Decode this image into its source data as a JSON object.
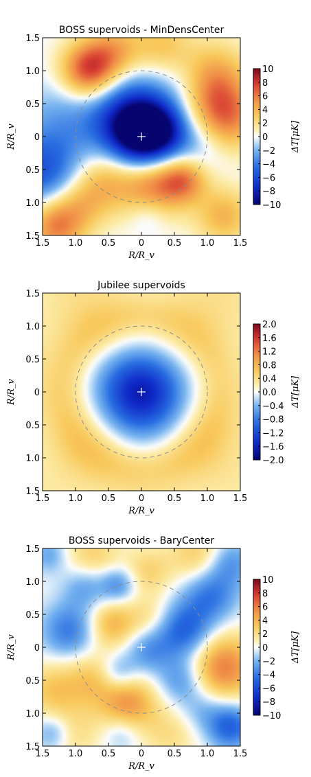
{
  "chart_data": [
    {
      "type": "heatmap",
      "title": "BOSS supervoids - MinDensCenter",
      "xlabel": "R/R_v",
      "ylabel": "R/R_v",
      "x_ticks": [
        "1.5",
        "1.0",
        "0.5",
        "0",
        "0.5",
        "1.0",
        "1.5"
      ],
      "y_ticks": [
        "1.5",
        "1.0",
        "0.5",
        "0",
        "0.5",
        "1.0",
        "1.5"
      ],
      "xlim": [
        -1.5,
        1.5
      ],
      "ylim": [
        -1.5,
        1.5
      ],
      "colorbar": {
        "label": "ΔT[μK]",
        "range": [
          -10,
          10
        ],
        "ticks": [
          "10",
          "8",
          "6",
          "4",
          "2",
          "0",
          "−2",
          "−4",
          "−6",
          "−8",
          "−10"
        ]
      },
      "circle_radius": 1.0,
      "center_marker": "+",
      "features": [
        {
          "x": 0.0,
          "y": 0.0,
          "value": -10,
          "size": 0.38
        },
        {
          "x": -0.15,
          "y": 0.35,
          "value": -5,
          "size": 0.45
        },
        {
          "x": 0.3,
          "y": 0.1,
          "value": -4,
          "size": 0.3
        },
        {
          "x": -1.5,
          "y": -0.55,
          "value": -5,
          "size": 0.4
        },
        {
          "x": -1.15,
          "y": 0.2,
          "value": -2.5,
          "size": 0.5
        },
        {
          "x": 0.7,
          "y": 0.8,
          "value": -2,
          "size": 0.3
        },
        {
          "x": 0.9,
          "y": -0.15,
          "value": -2,
          "size": 0.3
        },
        {
          "x": -0.8,
          "y": 1.0,
          "value": 8,
          "size": 0.3
        },
        {
          "x": -0.4,
          "y": 1.3,
          "value": 4,
          "size": 0.3
        },
        {
          "x": 1.05,
          "y": 0.8,
          "value": 6,
          "size": 0.4
        },
        {
          "x": 1.3,
          "y": 0.25,
          "value": 5,
          "size": 0.35
        },
        {
          "x": 0.2,
          "y": -0.7,
          "value": 6,
          "size": 0.35
        },
        {
          "x": 0.65,
          "y": -0.65,
          "value": 5,
          "size": 0.25
        },
        {
          "x": -0.5,
          "y": -0.6,
          "value": 4,
          "size": 0.35
        },
        {
          "x": -1.3,
          "y": -1.35,
          "value": 6,
          "size": 0.3
        },
        {
          "x": 1.25,
          "y": -1.2,
          "value": 4,
          "size": 0.3
        },
        {
          "x": 0.3,
          "y": 1.4,
          "value": 3,
          "size": 0.3
        },
        {
          "x": -0.9,
          "y": -1.0,
          "value": 3,
          "size": 0.3
        },
        {
          "x": 0.1,
          "y": -1.2,
          "value": -1.5,
          "size": 0.2
        }
      ]
    },
    {
      "type": "heatmap",
      "title": "Jubilee supervoids",
      "xlabel": "R/R_v",
      "ylabel": "R/R_v",
      "x_ticks": [
        "1.5",
        "1.0",
        "0.5",
        "0",
        "0.5",
        "1.0",
        "1.5"
      ],
      "y_ticks": [
        "1.5",
        "1.0",
        "0.5",
        "0",
        "0.5",
        "1.0",
        "1.5"
      ],
      "xlim": [
        -1.5,
        1.5
      ],
      "ylim": [
        -1.5,
        1.5
      ],
      "colorbar": {
        "label": "ΔT[μK]",
        "range": [
          -2.0,
          2.0
        ],
        "ticks": [
          "2.0",
          "1.6",
          "1.2",
          "0.8",
          "0.4",
          "0.0",
          "−0.4",
          "−0.8",
          "−1.2",
          "−1.6",
          "−2.0"
        ]
      },
      "circle_radius": 1.0,
      "center_marker": "+",
      "profile": {
        "center_value": -2.0,
        "core_radius": 0.45,
        "ring_radius": 1.15,
        "ring_value": 0.4,
        "background_value": 0.25
      }
    },
    {
      "type": "heatmap",
      "title": "BOSS supervoids - BaryCenter",
      "xlabel": "R/R_v",
      "ylabel": "R/R_v",
      "x_ticks": [
        "1.5",
        "1.0",
        "0.5",
        "0",
        "0.5",
        "1.0",
        "1.5"
      ],
      "y_ticks": [
        "1.5",
        "1.0",
        "0.5",
        "0",
        "0.5",
        "1.0",
        "1.5"
      ],
      "xlim": [
        -1.5,
        1.5
      ],
      "ylim": [
        -1.5,
        1.5
      ],
      "colorbar": {
        "label": "ΔT[μK]",
        "range": [
          -10,
          10
        ],
        "ticks": [
          "10",
          "8",
          "6",
          "4",
          "2",
          "0",
          "−2",
          "−4",
          "−6",
          "−8",
          "−10"
        ]
      },
      "circle_radius": 1.0,
      "center_marker": "+",
      "features": [
        {
          "x": 1.25,
          "y": -0.3,
          "value": 6,
          "size": 0.35
        },
        {
          "x": -0.2,
          "y": -0.85,
          "value": 5,
          "size": 0.3
        },
        {
          "x": -0.45,
          "y": 0.35,
          "value": 4,
          "size": 0.25
        },
        {
          "x": -0.75,
          "y": 1.35,
          "value": 3,
          "size": 0.3
        },
        {
          "x": 0.1,
          "y": 1.15,
          "value": 2.5,
          "size": 0.25
        },
        {
          "x": 0.85,
          "y": 1.4,
          "value": 3,
          "size": 0.3
        },
        {
          "x": 0.1,
          "y": 0.45,
          "value": 2,
          "size": 0.25
        },
        {
          "x": -1.35,
          "y": -0.65,
          "value": 3,
          "size": 0.3
        },
        {
          "x": -0.75,
          "y": -0.5,
          "value": 3,
          "size": 0.3
        },
        {
          "x": 0.45,
          "y": -1.3,
          "value": 2,
          "size": 0.3
        },
        {
          "x": -1.05,
          "y": -1.3,
          "value": 2,
          "size": 0.3
        },
        {
          "x": -1.1,
          "y": 0.25,
          "value": -4,
          "size": 0.3
        },
        {
          "x": -0.85,
          "y": 0.95,
          "value": -3,
          "size": 0.25
        },
        {
          "x": -0.35,
          "y": 0.95,
          "value": -3.5,
          "size": 0.2
        },
        {
          "x": 0.65,
          "y": 0.25,
          "value": -5,
          "size": 0.3
        },
        {
          "x": 1.05,
          "y": 0.8,
          "value": -4,
          "size": 0.3
        },
        {
          "x": 1.35,
          "y": 1.3,
          "value": -3,
          "size": 0.25
        },
        {
          "x": 0.1,
          "y": -0.05,
          "value": -3,
          "size": 0.25
        },
        {
          "x": 0.6,
          "y": -0.5,
          "value": -3,
          "size": 0.25
        },
        {
          "x": -0.35,
          "y": -0.4,
          "value": -3,
          "size": 0.2
        },
        {
          "x": 1.35,
          "y": -1.2,
          "value": -5,
          "size": 0.25
        },
        {
          "x": -1.35,
          "y": -1.3,
          "value": -3,
          "size": 0.2
        },
        {
          "x": -0.3,
          "y": -1.3,
          "value": -2,
          "size": 0.2
        },
        {
          "x": 0.9,
          "y": -0.95,
          "value": -2,
          "size": 0.25
        },
        {
          "x": -1.4,
          "y": 1.4,
          "value": -2.5,
          "size": 0.2
        }
      ]
    }
  ]
}
